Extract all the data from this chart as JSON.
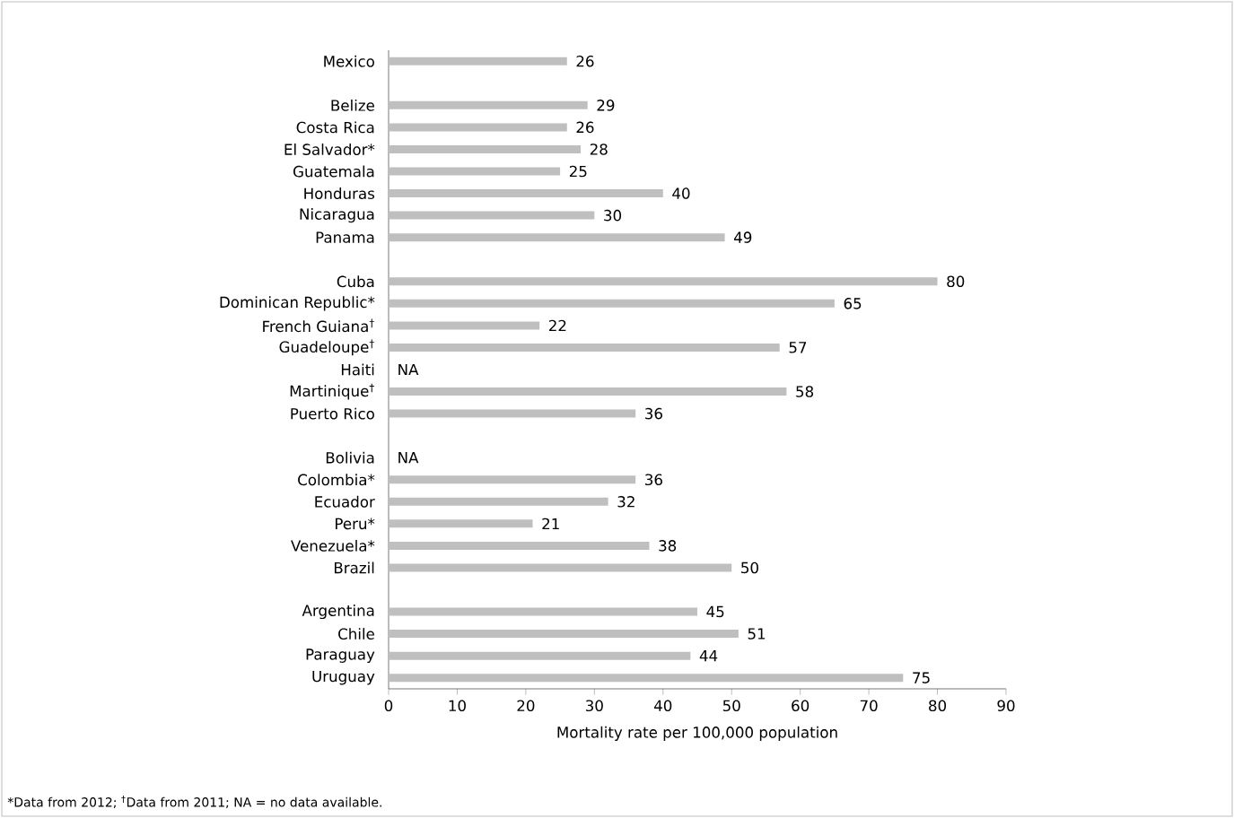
{
  "chart_data": {
    "type": "bar",
    "orientation": "horizontal",
    "xlabel": "Mortality rate per 100,000 population",
    "categories": [
      "Mexico",
      null,
      "Belize",
      "Costa Rica",
      "El Salvador*",
      "Guatemala",
      "Honduras",
      "Nicaragua",
      "Panama",
      null,
      "Cuba",
      "Dominican Republic*",
      "French Guiana$^{†}$",
      "Guadeloupe$^{†}$",
      "Haiti",
      "Martinique$^{†}$",
      "Puerto Rico",
      null,
      "Bolivia",
      "Colombia*",
      "Ecuador",
      "Peru*",
      "Venezuela*",
      "Brazil",
      null,
      "Argentina",
      "Chile",
      "Paraguay",
      "Uruguay"
    ],
    "values": [
      26,
      null,
      29,
      26,
      28,
      25,
      40,
      30,
      49,
      null,
      80,
      65,
      22,
      57,
      null,
      58,
      36,
      null,
      null,
      36,
      32,
      21,
      38,
      50,
      null,
      45,
      51,
      44,
      75
    ],
    "value_labels": [
      "26",
      null,
      "29",
      "26",
      "28",
      "25",
      "40",
      "30",
      "49",
      null,
      "80",
      "65",
      "22",
      "57",
      "NA",
      "58",
      "36",
      null,
      "NA",
      "36",
      "32",
      "21",
      "38",
      "50",
      null,
      "45",
      "51",
      "44",
      "75"
    ],
    "color": "#bfbfbf",
    "xlim": [
      0,
      90
    ],
    "xticks": [
      0,
      10,
      20,
      30,
      40,
      50,
      60,
      70,
      80,
      90
    ],
    "grid": false,
    "annotations": [
      "*Data from 2012; $^{†}$Data from 2011; NA = no data available."
    ]
  }
}
